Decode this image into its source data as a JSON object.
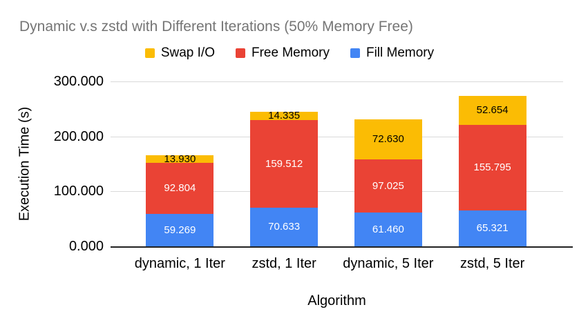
{
  "chart_data": {
    "type": "bar",
    "stacked": true,
    "title": "Dynamic v.s zstd with Different Iterations (50% Memory Free)",
    "title_color": "#757575",
    "xlabel": "Algorithm",
    "ylabel": "Execution Time (s)",
    "ylim": [
      0,
      300
    ],
    "grid": true,
    "gridline_color": "#d9d9d9",
    "axis_line_color": "#212121",
    "legend_position": "top",
    "legend_order": [
      "Swap I/O",
      "Free Memory",
      "Fill Memory"
    ],
    "value_decimals": 3,
    "yticks": [
      {
        "value": 0,
        "label": "0.000"
      },
      {
        "value": 100,
        "label": "100.000"
      },
      {
        "value": 200,
        "label": "200.000"
      },
      {
        "value": 300,
        "label": "300.000"
      }
    ],
    "categories": [
      "dynamic, 1 Iter",
      "zstd, 1 Iter",
      "dynamic, 5 Iter",
      "zstd, 5 Iter"
    ],
    "series": [
      {
        "name": "Fill Memory",
        "color": "#4285F4",
        "label_color": "#ffffff",
        "values": [
          59.269,
          70.633,
          61.46,
          65.321
        ]
      },
      {
        "name": "Free Memory",
        "color": "#EA4335",
        "label_color": "#ffffff",
        "values": [
          92.804,
          159.512,
          97.025,
          155.795
        ]
      },
      {
        "name": "Swap I/O",
        "color": "#FBBC04",
        "label_color": "#000000",
        "values": [
          13.93,
          14.335,
          72.63,
          52.654
        ]
      }
    ]
  }
}
